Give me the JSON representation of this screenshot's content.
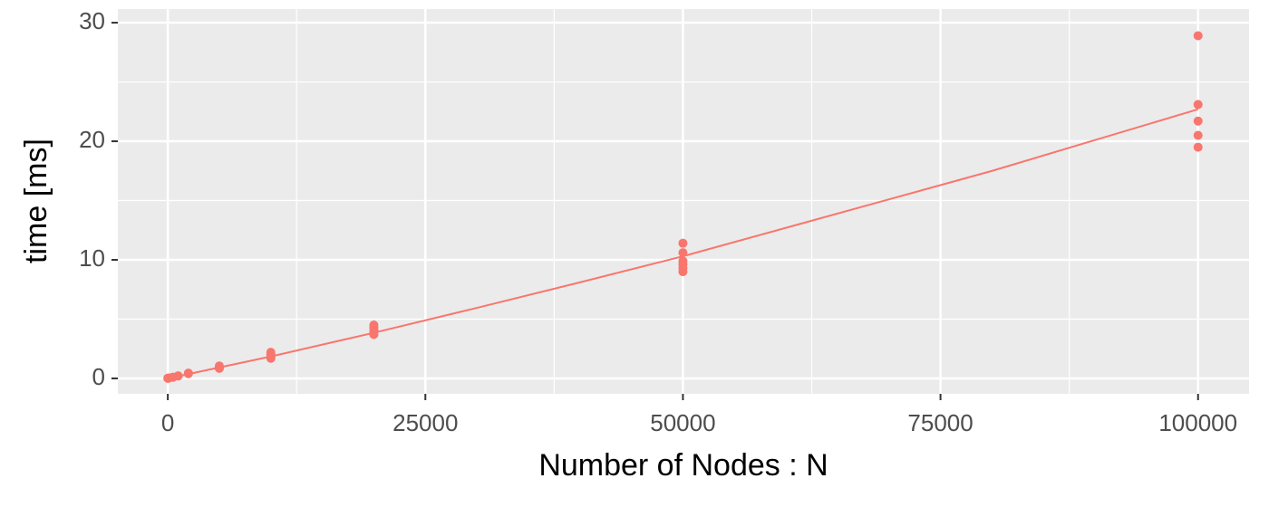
{
  "chart_data": {
    "type": "scatter",
    "x_label": "Number of Nodes : N",
    "y_label": "time [ms]",
    "color": "#F8766D",
    "points": {
      "x": [
        10,
        10,
        100,
        100,
        500,
        1000,
        1000,
        2000,
        2000,
        5000,
        5000,
        5000,
        10000,
        10000,
        10000,
        10000,
        20000,
        20000,
        20000,
        20000,
        20000,
        50000,
        50000,
        50000,
        50000,
        50000,
        50000,
        100000,
        100000,
        100000,
        100000,
        100000
      ],
      "y": [
        0.01,
        0.02,
        0.03,
        0.04,
        0.1,
        0.2,
        0.22,
        0.4,
        0.45,
        0.85,
        0.95,
        1.05,
        1.7,
        1.8,
        2.0,
        2.2,
        3.7,
        3.9,
        4.1,
        4.3,
        4.5,
        9.0,
        9.3,
        9.6,
        9.9,
        10.6,
        11.4,
        19.5,
        20.5,
        21.7,
        23.1,
        28.9
      ]
    },
    "line": {
      "x": [
        0,
        10000,
        20000,
        30000,
        40000,
        50000,
        60000,
        70000,
        80000,
        90000,
        100000
      ],
      "y": [
        0,
        1.85,
        3.85,
        5.95,
        8.1,
        10.3,
        12.7,
        15.1,
        17.5,
        20.1,
        22.7
      ]
    },
    "xlim": [
      -4850,
      104950
    ],
    "ylim": [
      -1.3,
      31.15
    ],
    "xticks": [
      0,
      25000,
      50000,
      75000,
      100000
    ],
    "yticks": [
      0,
      10,
      20,
      30
    ],
    "minor_xticks": [
      12500,
      37500,
      62500,
      87500
    ],
    "minor_yticks": [
      5,
      15,
      25
    ],
    "grid": true
  }
}
